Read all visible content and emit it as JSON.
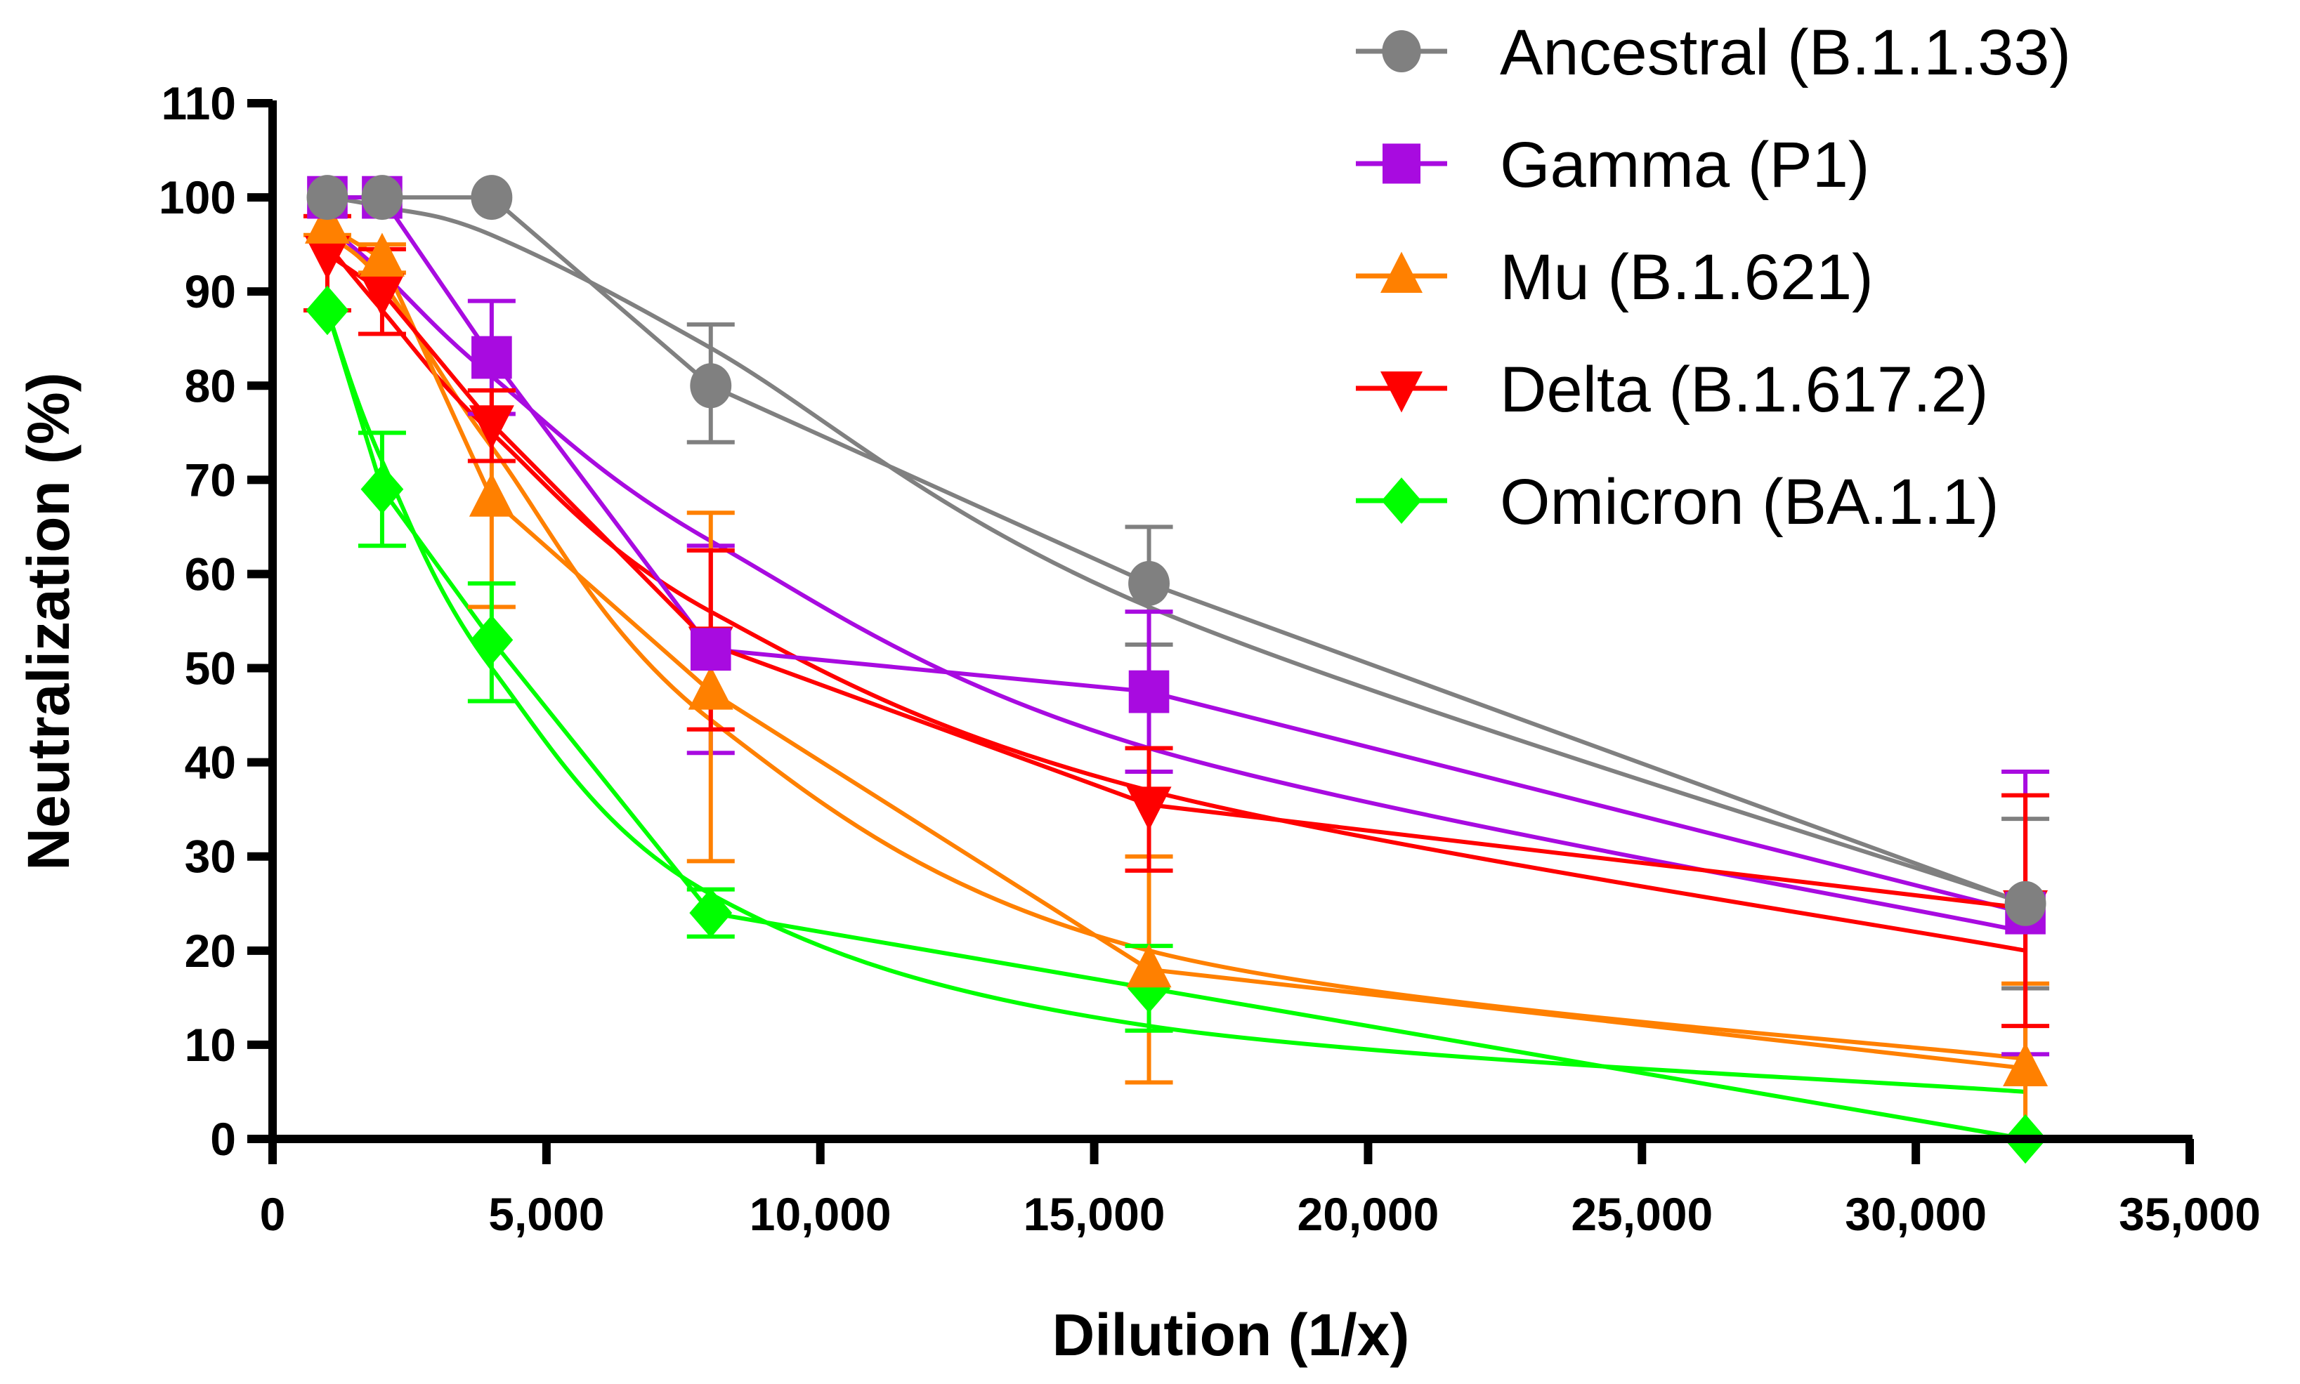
{
  "chart_data": {
    "type": "line",
    "title": "",
    "xlabel": "Dilution (1/x)",
    "ylabel": "Neutralization (%)",
    "xlim": [
      0,
      35000
    ],
    "ylim": [
      0,
      110
    ],
    "xticks": [
      0,
      5000,
      10000,
      15000,
      20000,
      25000,
      30000,
      35000
    ],
    "xtick_labels": [
      "0",
      "5,000",
      "10,000",
      "15,000",
      "20,000",
      "25,000",
      "30,000",
      "35,000"
    ],
    "yticks": [
      0,
      10,
      20,
      30,
      40,
      50,
      60,
      70,
      80,
      90,
      100,
      110
    ],
    "ytick_labels": [
      "0",
      "10",
      "20",
      "30",
      "40",
      "50",
      "60",
      "70",
      "80",
      "90",
      "100",
      "110"
    ],
    "grid": false,
    "legend_position": "top-right",
    "x": [
      1000,
      2000,
      4000,
      8000,
      16000,
      32000
    ],
    "series": [
      {
        "name": "Ancestral (B.1.1.33)",
        "color": "#808080",
        "marker": "circle",
        "values": [
          100,
          100,
          100,
          80,
          59,
          25
        ],
        "err_low": [
          100,
          100,
          100,
          74,
          52.5,
          16
        ],
        "err_high": [
          100,
          100,
          100,
          86.5,
          65,
          34
        ],
        "fit": [
          100,
          99,
          96,
          84,
          56.5,
          25
        ]
      },
      {
        "name": "Gamma (P1)",
        "color": "#A80BE0",
        "marker": "square",
        "values": [
          100,
          100,
          83,
          52,
          47.5,
          24
        ],
        "err_low": [
          100,
          100,
          77,
          41,
          39,
          9
        ],
        "err_high": [
          100,
          100,
          89,
          63,
          56,
          39
        ],
        "fit": [
          97,
          92,
          81,
          63.5,
          41.5,
          22
        ]
      },
      {
        "name": "Mu (B.1.621)",
        "color": "#FF8000",
        "marker": "triangle-up",
        "values": [
          97,
          93.5,
          68,
          47.5,
          18,
          7.5
        ],
        "err_low": [
          96,
          92,
          56.5,
          29.5,
          6,
          0
        ],
        "err_high": [
          98,
          95,
          79.5,
          66.5,
          30,
          16.5
        ],
        "fit": [
          96,
          91,
          73.5,
          44.5,
          20,
          8.5
        ]
      },
      {
        "name": "Delta (B.1.617.2)",
        "color": "#FF0000",
        "marker": "triangle-down",
        "values": [
          94,
          90,
          76,
          52.5,
          35.5,
          24.5
        ],
        "err_low": [
          88,
          85.5,
          72,
          43.5,
          28.5,
          12
        ],
        "err_high": [
          98,
          94.5,
          79.5,
          62.5,
          41.5,
          36.5
        ],
        "fit": [
          95,
          88,
          75,
          56,
          37,
          20
        ]
      },
      {
        "name": "Omicron (BA.1.1)",
        "color": "#00FF00",
        "marker": "diamond",
        "values": [
          88,
          69,
          53,
          24,
          16,
          0
        ],
        "err_low": [
          88,
          63,
          46.5,
          21.5,
          11.5,
          0
        ],
        "err_high": [
          88,
          75,
          59,
          26.5,
          20.5,
          0
        ],
        "fit": [
          88,
          72,
          50,
          26,
          12,
          5
        ]
      }
    ]
  }
}
